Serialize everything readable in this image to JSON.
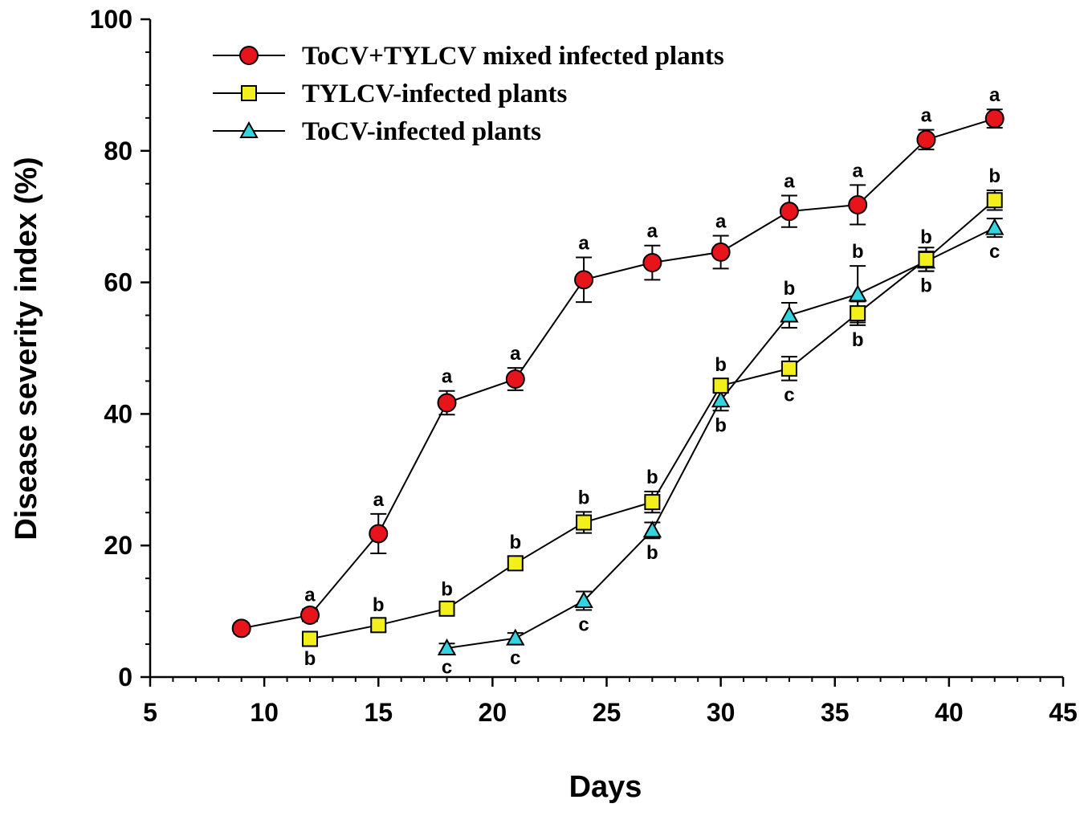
{
  "chart_data": {
    "type": "line",
    "title": "",
    "xlabel": "Days",
    "ylabel": "Disease severity index (%)",
    "xlim": [
      5,
      45
    ],
    "ylim": [
      0,
      100
    ],
    "x_ticks": [
      5,
      10,
      15,
      20,
      25,
      30,
      35,
      40,
      45
    ],
    "y_ticks": [
      0,
      20,
      40,
      60,
      80,
      100
    ],
    "x_minor_step": 1,
    "y_minor_step": 5,
    "legend_position": "top-left",
    "series": [
      {
        "name": "ToCV+TYLCV mixed infected plants",
        "marker": "circle",
        "color": "#e8141b",
        "points": [
          {
            "x": 9,
            "y": 7.4,
            "err": 0.8,
            "label": ""
          },
          {
            "x": 12,
            "y": 9.4,
            "err": 0.9,
            "label": "a"
          },
          {
            "x": 15,
            "y": 21.8,
            "err": 3.0,
            "label": "a"
          },
          {
            "x": 18,
            "y": 41.7,
            "err": 1.8,
            "label": "a"
          },
          {
            "x": 21,
            "y": 45.3,
            "err": 1.7,
            "label": "a"
          },
          {
            "x": 24,
            "y": 60.4,
            "err": 3.4,
            "label": "a"
          },
          {
            "x": 27,
            "y": 63.0,
            "err": 2.6,
            "label": "a"
          },
          {
            "x": 30,
            "y": 64.6,
            "err": 2.5,
            "label": "a"
          },
          {
            "x": 33,
            "y": 70.8,
            "err": 2.4,
            "label": "a"
          },
          {
            "x": 36,
            "y": 71.8,
            "err": 3.0,
            "label": "a"
          },
          {
            "x": 39,
            "y": 81.7,
            "err": 1.5,
            "label": "a"
          },
          {
            "x": 42,
            "y": 84.9,
            "err": 1.4,
            "label": "a"
          }
        ]
      },
      {
        "name": "TYLCV-infected plants",
        "marker": "square",
        "color": "#f2ef1d",
        "points": [
          {
            "x": 12,
            "y": 5.8,
            "err": 0.8,
            "label": "b",
            "label_pos": "below"
          },
          {
            "x": 15,
            "y": 7.9,
            "err": 0.9,
            "label": "b",
            "label_pos": "above"
          },
          {
            "x": 18,
            "y": 10.4,
            "err": 0.8,
            "label": "b",
            "label_pos": "above"
          },
          {
            "x": 21,
            "y": 17.3,
            "err": 1.0,
            "label": "b",
            "label_pos": "above"
          },
          {
            "x": 24,
            "y": 23.5,
            "err": 1.6,
            "label": "b",
            "label_pos": "above"
          },
          {
            "x": 27,
            "y": 26.6,
            "err": 1.6,
            "label": "b",
            "label_pos": "above"
          },
          {
            "x": 30,
            "y": 44.3,
            "err": 1.0,
            "label": "b",
            "label_pos": "above"
          },
          {
            "x": 33,
            "y": 46.9,
            "err": 1.8,
            "label": "c",
            "label_pos": "below"
          },
          {
            "x": 36,
            "y": 55.3,
            "err": 1.8,
            "label": "b",
            "label_pos": "below"
          },
          {
            "x": 39,
            "y": 63.5,
            "err": 1.8,
            "label": "b",
            "label_pos": "below"
          },
          {
            "x": 42,
            "y": 72.5,
            "err": 1.5,
            "label": "b",
            "label_pos": "above"
          }
        ]
      },
      {
        "name": "ToCV-infected plants",
        "marker": "triangle",
        "color": "#33d4e0",
        "points": [
          {
            "x": 18,
            "y": 4.4,
            "err": 0.7,
            "label": "c",
            "label_pos": "below"
          },
          {
            "x": 21,
            "y": 5.9,
            "err": 0.8,
            "label": "c",
            "label_pos": "below"
          },
          {
            "x": 24,
            "y": 11.6,
            "err": 1.4,
            "label": "c",
            "label_pos": "below"
          },
          {
            "x": 27,
            "y": 22.3,
            "err": 1.2,
            "label": "b",
            "label_pos": "below"
          },
          {
            "x": 30,
            "y": 42.1,
            "err": 1.6,
            "label": "b",
            "label_pos": "below"
          },
          {
            "x": 33,
            "y": 55.0,
            "err": 1.9,
            "label": "b",
            "label_pos": "above"
          },
          {
            "x": 36,
            "y": 58.2,
            "err": 4.3,
            "label": "b",
            "label_pos": "above"
          },
          {
            "x": 39,
            "y": 63.2,
            "err": 1.5,
            "label": "b",
            "label_pos": "above"
          },
          {
            "x": 42,
            "y": 68.3,
            "err": 1.4,
            "label": "c",
            "label_pos": "below"
          }
        ]
      }
    ]
  }
}
